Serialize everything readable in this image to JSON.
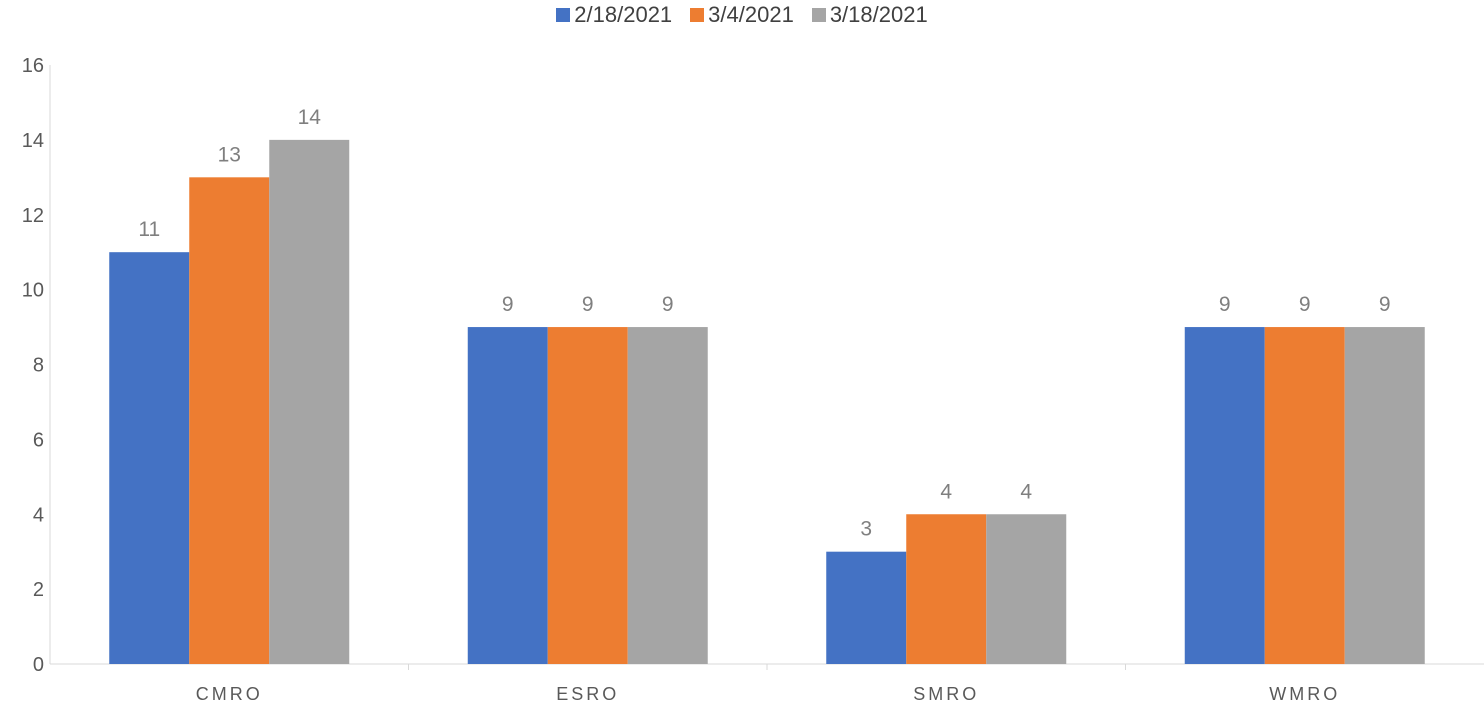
{
  "chart_data": {
    "type": "bar",
    "categories": [
      "CMRO",
      "ESRO",
      "SMRO",
      "WMRO"
    ],
    "series": [
      {
        "name": "2/18/2021",
        "values": [
          11,
          9,
          3,
          9
        ],
        "color": "#4472c4"
      },
      {
        "name": "3/4/2021",
        "values": [
          13,
          9,
          4,
          9
        ],
        "color": "#ed7d31"
      },
      {
        "name": "3/18/2021",
        "values": [
          14,
          9,
          4,
          9
        ],
        "color": "#a5a5a5"
      }
    ],
    "ylim": [
      0,
      16
    ],
    "yticks": [
      0,
      2,
      4,
      6,
      8,
      10,
      12,
      14,
      16
    ],
    "legend_position": "top-center",
    "grid": false,
    "data_labels": true
  }
}
